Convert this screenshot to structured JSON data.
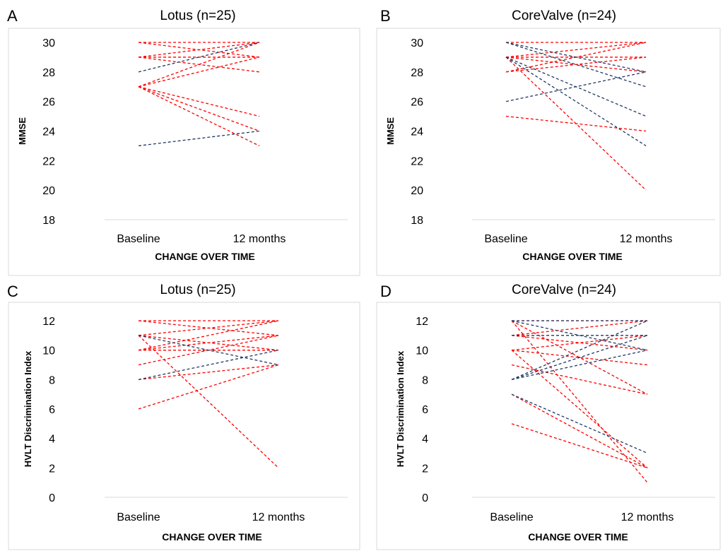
{
  "colors": {
    "decline": "#ff0000",
    "improve": "#1f3864"
  },
  "chart_data": [
    {
      "letter": "A",
      "type": "line",
      "title": "Lotus (n=25)",
      "xlabel": "CHANGE OVER TIME",
      "ylabel": "MMSE",
      "categories": [
        "Baseline",
        "12 months"
      ],
      "ylim": [
        18,
        30
      ],
      "yticks": [
        "18",
        "20",
        "22",
        "24",
        "26",
        "28",
        "30"
      ],
      "grid": "bottom axis only",
      "series": [
        {
          "color": "decline",
          "values": [
            30,
            30
          ]
        },
        {
          "color": "decline",
          "values": [
            30,
            29
          ]
        },
        {
          "color": "decline",
          "values": [
            29,
            30
          ]
        },
        {
          "color": "decline",
          "values": [
            29,
            29
          ]
        },
        {
          "color": "decline",
          "values": [
            29,
            28
          ]
        },
        {
          "color": "decline",
          "values": [
            27,
            30
          ]
        },
        {
          "color": "decline",
          "values": [
            27,
            29
          ]
        },
        {
          "color": "decline",
          "values": [
            27,
            25
          ]
        },
        {
          "color": "decline",
          "values": [
            27,
            24
          ]
        },
        {
          "color": "decline",
          "values": [
            27,
            23
          ]
        },
        {
          "color": "improve",
          "values": [
            28,
            30
          ]
        },
        {
          "color": "improve",
          "values": [
            23,
            24
          ]
        }
      ]
    },
    {
      "letter": "B",
      "type": "line",
      "title": "CoreValve (n=24)",
      "xlabel": "CHANGE OVER TIME",
      "ylabel": "MMSE",
      "categories": [
        "Baseline",
        "12 months"
      ],
      "ylim": [
        18,
        30
      ],
      "yticks": [
        "18",
        "20",
        "22",
        "24",
        "26",
        "28",
        "30"
      ],
      "grid": "bottom axis only",
      "series": [
        {
          "color": "decline",
          "values": [
            30,
            30
          ]
        },
        {
          "color": "decline",
          "values": [
            29,
            30
          ]
        },
        {
          "color": "decline",
          "values": [
            29,
            29
          ]
        },
        {
          "color": "decline",
          "values": [
            28,
            30
          ]
        },
        {
          "color": "decline",
          "values": [
            28,
            29
          ]
        },
        {
          "color": "decline",
          "values": [
            29,
            28
          ]
        },
        {
          "color": "decline",
          "values": [
            29,
            20
          ]
        },
        {
          "color": "decline",
          "values": [
            25,
            24
          ]
        },
        {
          "color": "improve",
          "values": [
            30,
            28
          ]
        },
        {
          "color": "improve",
          "values": [
            30,
            27
          ]
        },
        {
          "color": "improve",
          "values": [
            29,
            25
          ]
        },
        {
          "color": "improve",
          "values": [
            29,
            23
          ]
        },
        {
          "color": "improve",
          "values": [
            26,
            28
          ]
        }
      ]
    },
    {
      "letter": "C",
      "type": "line",
      "title": "Lotus (n=25)",
      "xlabel": "CHANGE OVER TIME",
      "ylabel": "HVLT Discrimination Index",
      "categories": [
        "Baseline",
        "12 months"
      ],
      "ylim": [
        0,
        12
      ],
      "yticks": [
        "0",
        "2",
        "4",
        "6",
        "8",
        "10",
        "12"
      ],
      "grid": "bottom axis only",
      "series": [
        {
          "color": "decline",
          "values": [
            12,
            12
          ]
        },
        {
          "color": "decline",
          "values": [
            12,
            11
          ]
        },
        {
          "color": "decline",
          "values": [
            11,
            12
          ]
        },
        {
          "color": "decline",
          "values": [
            11,
            10
          ]
        },
        {
          "color": "decline",
          "values": [
            11,
            2
          ]
        },
        {
          "color": "decline",
          "values": [
            10,
            12
          ]
        },
        {
          "color": "decline",
          "values": [
            10,
            11
          ]
        },
        {
          "color": "decline",
          "values": [
            10,
            10
          ]
        },
        {
          "color": "decline",
          "values": [
            9,
            11
          ]
        },
        {
          "color": "decline",
          "values": [
            8,
            9
          ]
        },
        {
          "color": "decline",
          "values": [
            6,
            9
          ]
        },
        {
          "color": "improve",
          "values": [
            11,
            9
          ]
        },
        {
          "color": "improve",
          "values": [
            8,
            10
          ]
        }
      ]
    },
    {
      "letter": "D",
      "type": "line",
      "title": "CoreValve (n=24)",
      "xlabel": "CHANGE OVER TIME",
      "ylabel": "HVLT Discrimination Index",
      "categories": [
        "Baseline",
        "12 months"
      ],
      "ylim": [
        0,
        12
      ],
      "yticks": [
        "0",
        "2",
        "4",
        "6",
        "8",
        "10",
        "12"
      ],
      "grid": "bottom axis only",
      "series": [
        {
          "color": "decline",
          "values": [
            12,
            12
          ]
        },
        {
          "color": "decline",
          "values": [
            11,
            12
          ]
        },
        {
          "color": "decline",
          "values": [
            11,
            10
          ]
        },
        {
          "color": "decline",
          "values": [
            10,
            11
          ]
        },
        {
          "color": "decline",
          "values": [
            10,
            9
          ]
        },
        {
          "color": "decline",
          "values": [
            10,
            2
          ]
        },
        {
          "color": "decline",
          "values": [
            9,
            7
          ]
        },
        {
          "color": "decline",
          "values": [
            12,
            7
          ]
        },
        {
          "color": "decline",
          "values": [
            12,
            1
          ]
        },
        {
          "color": "decline",
          "values": [
            7,
            2
          ]
        },
        {
          "color": "decline",
          "values": [
            5,
            2
          ]
        },
        {
          "color": "improve",
          "values": [
            12,
            12
          ]
        },
        {
          "color": "improve",
          "values": [
            12,
            10
          ]
        },
        {
          "color": "improve",
          "values": [
            11,
            11
          ]
        },
        {
          "color": "improve",
          "values": [
            8,
            12
          ]
        },
        {
          "color": "improve",
          "values": [
            8,
            11
          ]
        },
        {
          "color": "improve",
          "values": [
            8,
            10
          ]
        },
        {
          "color": "improve",
          "values": [
            7,
            3
          ]
        }
      ]
    }
  ]
}
